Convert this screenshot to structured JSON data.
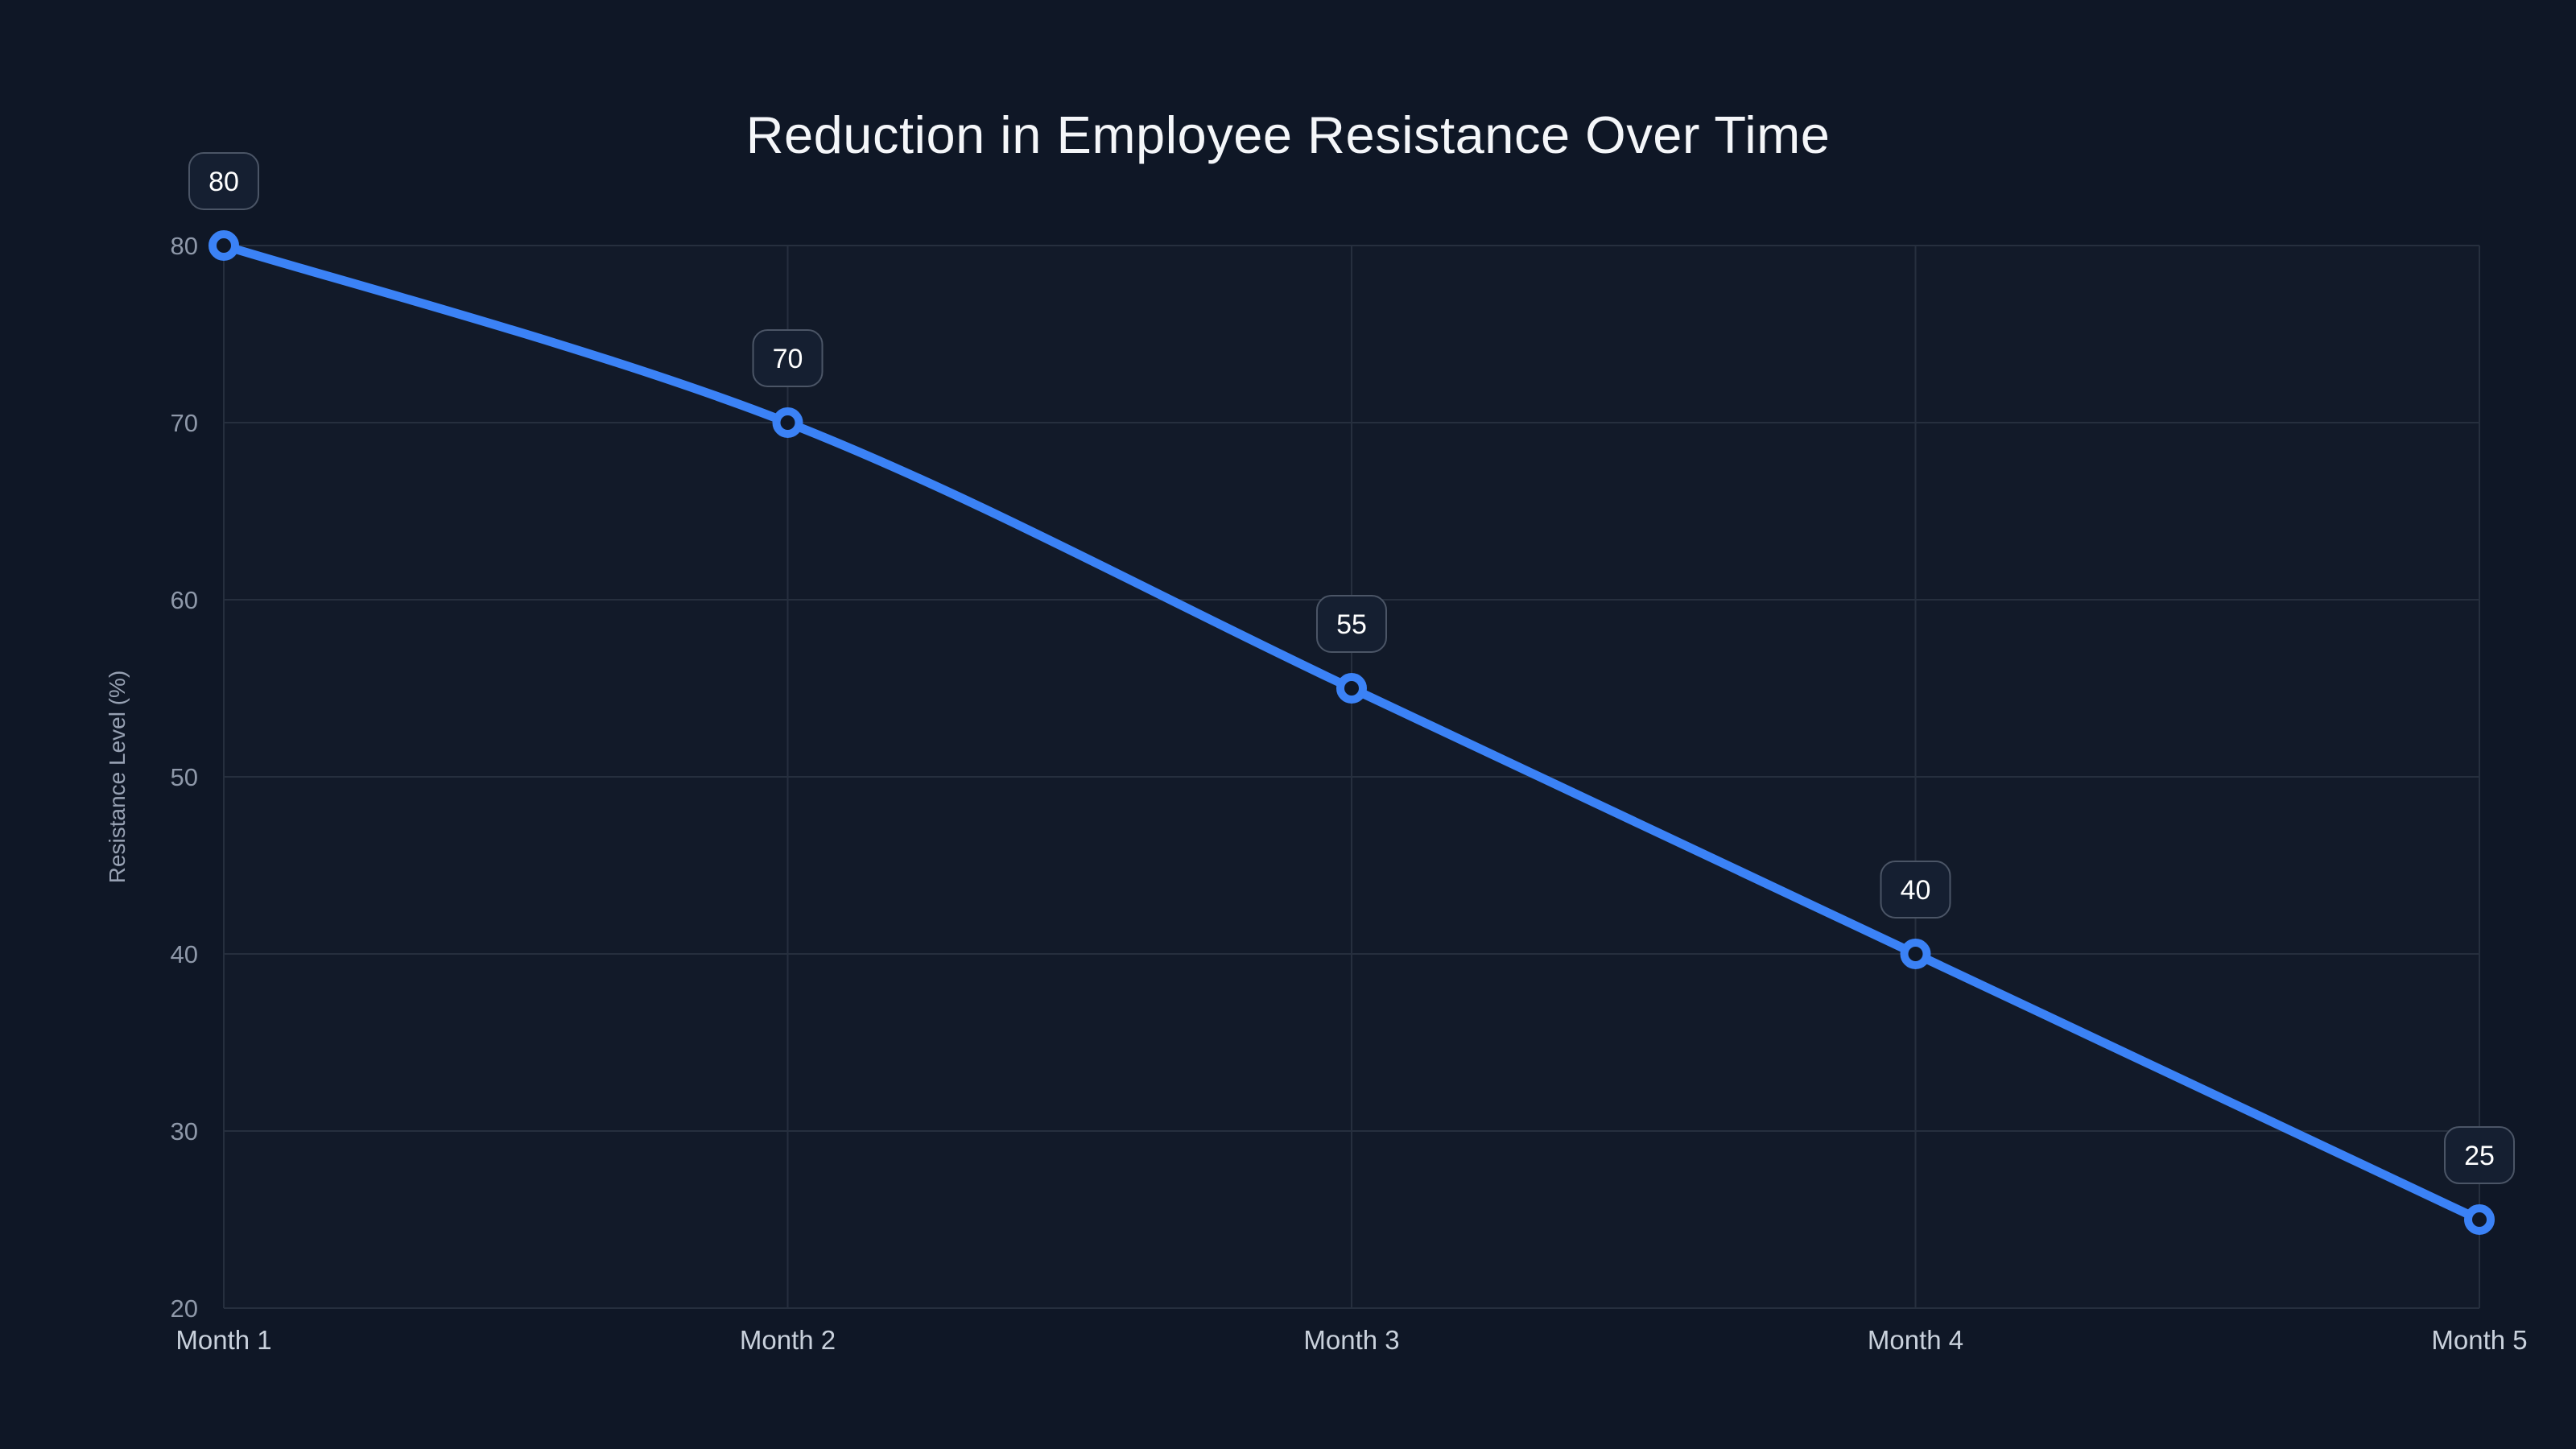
{
  "colors": {
    "background": "#0f1726",
    "grid": "#262f3e",
    "line": "#3b82f6",
    "marker_fill": "#0f1726",
    "plot_fill": "rgba(255,255,255,0.015)",
    "y_tick_text": "#8e98a9",
    "x_tick_text": "#c9d1dc",
    "axis_title_text": "#97a1b3",
    "title_text": "#f4f6f9",
    "label_box_fill": "#151f31",
    "label_box_border": "#4b5566",
    "label_text": "#ffffff"
  },
  "chart_data": {
    "type": "line",
    "title": "Reduction in Employee Resistance Over Time",
    "categories": [
      "Month 1",
      "Month 2",
      "Month 3",
      "Month 4",
      "Month 5"
    ],
    "values": [
      80,
      70,
      55,
      40,
      25
    ],
    "point_labels": [
      "80",
      "70",
      "55",
      "40",
      "25"
    ],
    "xlabel": "",
    "ylabel": "Resistance Level (%)",
    "ylim": [
      20,
      80
    ],
    "yticks": [
      20,
      30,
      40,
      50,
      60,
      70,
      80
    ],
    "grid": true,
    "legend_position": "none",
    "smooth": true
  }
}
